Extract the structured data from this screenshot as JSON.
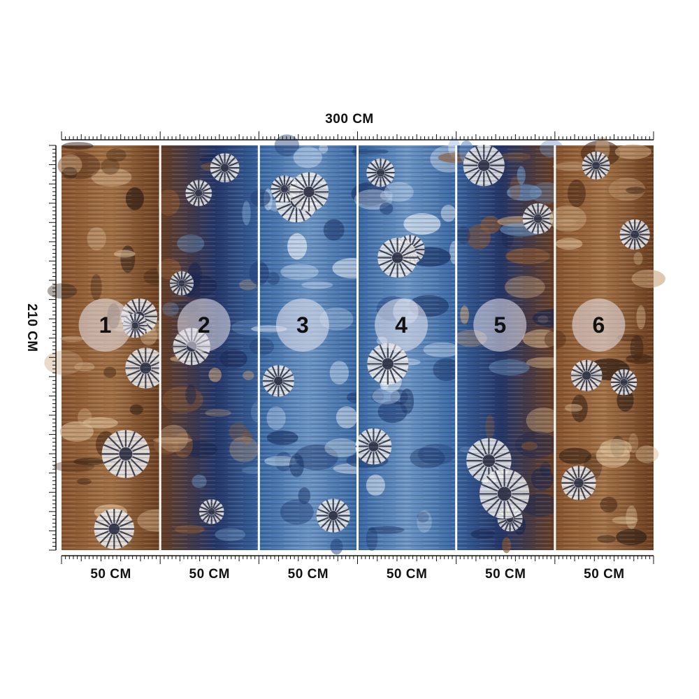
{
  "dimensions": {
    "total_width": "300 CM",
    "total_height": "210 CM"
  },
  "panels": [
    {
      "number": "1",
      "width": "50 CM",
      "tone": "brown"
    },
    {
      "number": "2",
      "width": "50 CM",
      "tone": "mixed"
    },
    {
      "number": "3",
      "width": "50 CM",
      "tone": "blue"
    },
    {
      "number": "4",
      "width": "50 CM",
      "tone": "blue"
    },
    {
      "number": "5",
      "width": "50 CM",
      "tone": "mixed"
    },
    {
      "number": "6",
      "width": "50 CM",
      "tone": "brown"
    }
  ],
  "colors": {
    "brown": "#7a4a28",
    "tan": "#b68a60",
    "navy": "#1a2a56",
    "blue": "#3f6fa8",
    "light_blue": "#8fb0d4",
    "badge": "#e9e6ee"
  }
}
